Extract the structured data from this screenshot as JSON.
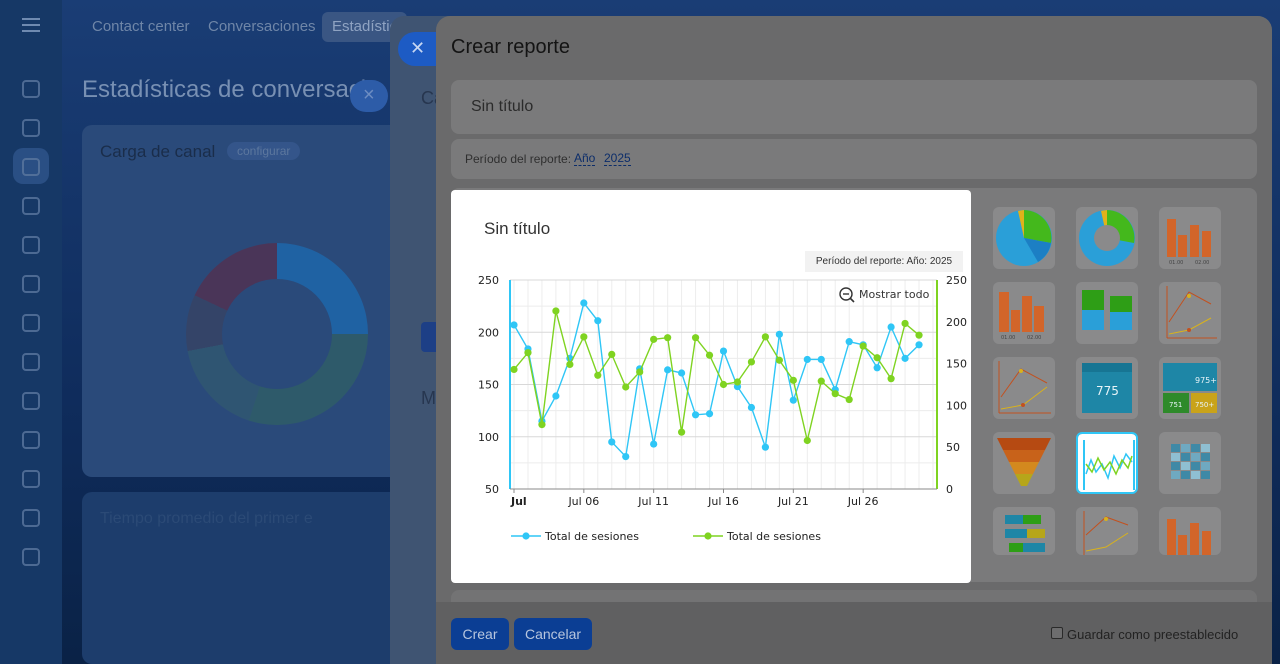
{
  "background": {
    "tabs": [
      "Contact center",
      "Conversaciones",
      "Estadístic"
    ],
    "page_title": "Estadísticas de conversaci",
    "card_title": "Carga de canal",
    "card_pill": "configurar",
    "card2_title": "Tiempo promedio del primer e",
    "panel2_heading_fragment": "Ca",
    "panel2_m_fragment": "M"
  },
  "panel": {
    "title": "Crear reporte",
    "report_name": "Sin título",
    "period_label": "Período del reporte:",
    "period_unit": "Año",
    "period_year": "2025",
    "create_button": "Crear",
    "cancel_button": "Cancelar",
    "save_preset_label": "Guardar como preestablecido"
  },
  "thumbs_text": {
    "stat_big": "775",
    "stat_a": "975+",
    "stat_b": "751",
    "stat_c": "750+",
    "label_0100": "01.00",
    "label_0200": "02.00"
  },
  "popup": {
    "title": "Sin título",
    "period_text": "Período del reporte: Año: 2025",
    "show_all": "Mostrar todo"
  },
  "chart_data": {
    "type": "line",
    "x_tick_labels": [
      "Jul",
      "Jul 06",
      "Jul 11",
      "Jul 16",
      "Jul 21",
      "Jul 26"
    ],
    "x": [
      1,
      2,
      3,
      4,
      5,
      6,
      7,
      8,
      9,
      10,
      11,
      12,
      13,
      14,
      15,
      16,
      17,
      18,
      19,
      20,
      21,
      22,
      23,
      24,
      25,
      26,
      27,
      28,
      29,
      30,
      31
    ],
    "y_left_ticks": [
      "250",
      "200",
      "150",
      "100",
      "50"
    ],
    "y_left_lim": [
      50,
      250
    ],
    "y_right_ticks": [
      "250",
      "200",
      "150",
      "100",
      "50",
      "0"
    ],
    "y_right_lim": [
      0,
      250
    ],
    "grid": true,
    "legend_position": "bottom-left",
    "series": [
      {
        "name": "Total de sesiones",
        "axis": "left",
        "color": "#2fc6f6",
        "values": [
          207,
          184,
          115,
          139,
          175,
          228,
          211,
          95,
          81,
          165,
          93,
          164,
          161,
          121,
          122,
          182,
          148,
          128,
          90,
          198,
          135,
          174,
          174,
          145,
          191,
          188,
          166,
          205,
          175,
          188,
          null
        ]
      },
      {
        "name": "Total de sesiones",
        "axis": "right",
        "color": "#7fd321",
        "values": [
          143,
          163,
          77,
          213,
          149,
          182,
          136,
          161,
          122,
          140,
          179,
          181,
          68,
          181,
          160,
          125,
          128,
          152,
          182,
          154,
          130,
          58,
          129,
          114,
          107,
          171,
          157,
          132,
          198,
          184,
          null
        ]
      }
    ]
  }
}
